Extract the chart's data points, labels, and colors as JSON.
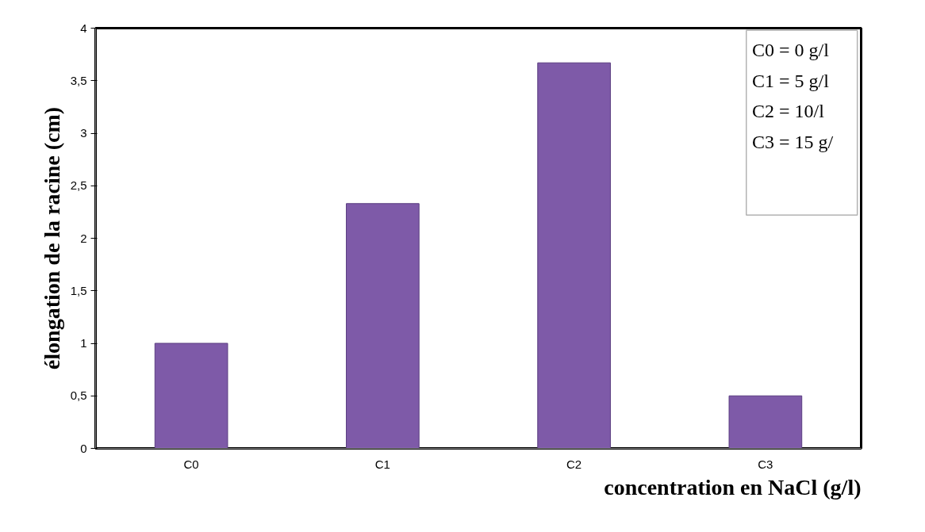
{
  "chart_data": {
    "type": "bar",
    "xlabel": "concentration en NaCl (g/l)",
    "ylabel": "élongation de la racine (cm)",
    "categories": [
      "C0",
      "C1",
      "C2",
      "C3"
    ],
    "values": [
      1,
      2.33,
      3.67,
      0.5
    ],
    "color": "#7e5aa8",
    "ylim": [
      0,
      4
    ],
    "yticks": [
      0,
      {
        "value": 0.5,
        "label": "0,5"
      },
      1,
      {
        "value": 1.5,
        "label": "1,5"
      },
      2,
      {
        "value": 2.5,
        "label": "2,5"
      },
      3,
      {
        "value": 3.5,
        "label": "3,5"
      },
      4
    ],
    "grid": false,
    "annotations": [
      "C0 = 0 g/l",
      "C1 = 5 g/l",
      "C2 = 10/l",
      "C3 = 15 g/"
    ]
  }
}
